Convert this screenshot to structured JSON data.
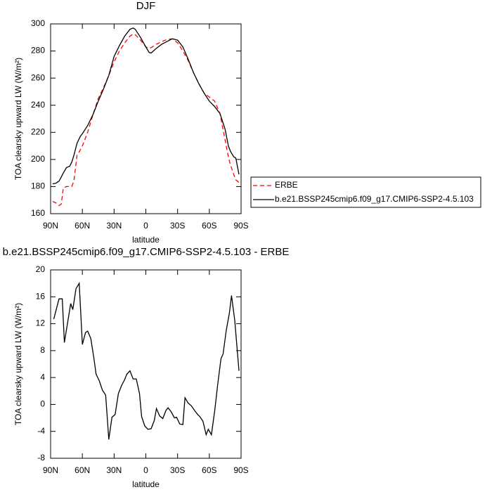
{
  "chart_data": [
    {
      "type": "line",
      "title": "DJF",
      "xlabel": "latitude",
      "ylabel": "TOA clearsky upward LW (W/m²)",
      "xlim": [
        90,
        -90
      ],
      "ylim": [
        160,
        300
      ],
      "xticks": [
        {
          "value": 90,
          "label": "90N"
        },
        {
          "value": 60,
          "label": "60N"
        },
        {
          "value": 30,
          "label": "30N"
        },
        0,
        {
          "value": -30,
          "label": "30S"
        },
        {
          "value": -60,
          "label": "60S"
        },
        {
          "value": -90,
          "label": "90S"
        }
      ],
      "yticks": [
        160,
        180,
        200,
        220,
        240,
        260,
        280,
        300
      ],
      "legend": "outside-right",
      "x": [
        88,
        85,
        82,
        80,
        78,
        75,
        72,
        70,
        68,
        65,
        62,
        60,
        55,
        50,
        45,
        40,
        35,
        30,
        25,
        20,
        15,
        12,
        10,
        5,
        0,
        -3,
        -5,
        -10,
        -15,
        -20,
        -25,
        -30,
        -35,
        -40,
        -45,
        -50,
        -55,
        -60,
        -65,
        -70,
        -75,
        -78,
        -80,
        -83,
        -85,
        -88
      ],
      "series": [
        {
          "name": "ERBE",
          "color": "#ff0000",
          "line_style": "dashed",
          "values": [
            169,
            168,
            166,
            167,
            179,
            180,
            180,
            180,
            184,
            203,
            207,
            210,
            220,
            233,
            245,
            253,
            262,
            272,
            280,
            286,
            291,
            292.5,
            292,
            288,
            283,
            282,
            282.5,
            285,
            287,
            288.5,
            289,
            286,
            280,
            273,
            264,
            256,
            249,
            246,
            243,
            234,
            214,
            202,
            196,
            189,
            185,
            183
          ]
        },
        {
          "name": "b.e21.BSSP245cmip6.f09_g17.CMIP6-SSP2-4.5.103",
          "color": "#000000",
          "line_style": "solid",
          "values": [
            182,
            182.5,
            184,
            187,
            190,
            194,
            195,
            198,
            203,
            212,
            217,
            219,
            225,
            233,
            243,
            252,
            262,
            276,
            284,
            291,
            296,
            297,
            296,
            290,
            283,
            279,
            278.5,
            282,
            285,
            287,
            289,
            288,
            283,
            274,
            264,
            256,
            249,
            243,
            239,
            234,
            222,
            210,
            206,
            202,
            201,
            189
          ]
        }
      ]
    },
    {
      "type": "line",
      "title": "b.e21.BSSP245cmip6.f09_g17.CMIP6-SSP2-4.5.103 - ERBE",
      "xlabel": "latitude",
      "ylabel": "TOA clearsky upward LW (W/m²)",
      "xlim": [
        90,
        -90
      ],
      "ylim": [
        -8,
        20
      ],
      "xticks": [
        {
          "value": 90,
          "label": "90N"
        },
        {
          "value": 60,
          "label": "60N"
        },
        {
          "value": 30,
          "label": "30N"
        },
        0,
        {
          "value": -30,
          "label": "30S"
        },
        {
          "value": -60,
          "label": "60S"
        },
        {
          "value": -90,
          "label": "90S"
        }
      ],
      "yticks": [
        -8,
        -4,
        0,
        4,
        8,
        12,
        16,
        20
      ],
      "x": [
        87,
        82,
        79,
        77,
        71,
        69,
        66,
        63,
        60,
        57,
        55,
        52,
        49,
        47,
        44,
        41,
        38,
        35,
        32,
        29,
        26,
        23,
        20,
        18,
        15,
        12,
        9,
        6,
        4,
        1,
        -2,
        -5,
        -8,
        -10,
        -13,
        -16,
        -19,
        -21,
        -24,
        -27,
        -29,
        -32,
        -35,
        -37,
        -40,
        -43,
        -46,
        -49,
        -51,
        -54,
        -57,
        -59,
        -62,
        -65,
        -68,
        -71,
        -73,
        -76,
        -79,
        -81,
        -84,
        -88
      ],
      "series": [
        {
          "color": "#000000",
          "line_style": "solid",
          "values": [
            12.7,
            15.7,
            15.7,
            9.2,
            15,
            14.1,
            17.2,
            18,
            8.9,
            10.7,
            10.9,
            9.8,
            6.8,
            4.5,
            3.5,
            2.1,
            1.4,
            -5.2,
            -1.9,
            -1.5,
            1.6,
            2.8,
            3.7,
            4.5,
            5,
            3.8,
            3.8,
            1.6,
            -1.8,
            -3.2,
            -3.7,
            -3.6,
            -2.4,
            -0.6,
            -1.7,
            -2.1,
            -0.9,
            -0.5,
            -1.1,
            -2,
            -1.9,
            -2.9,
            -3,
            1,
            0.2,
            -0.2,
            -0.9,
            -1.5,
            -1.8,
            -2.5,
            -4.5,
            -3.7,
            -4.5,
            -1,
            3.1,
            6.8,
            7.5,
            11,
            13.6,
            16.2,
            12.5,
            5
          ]
        }
      ]
    }
  ]
}
